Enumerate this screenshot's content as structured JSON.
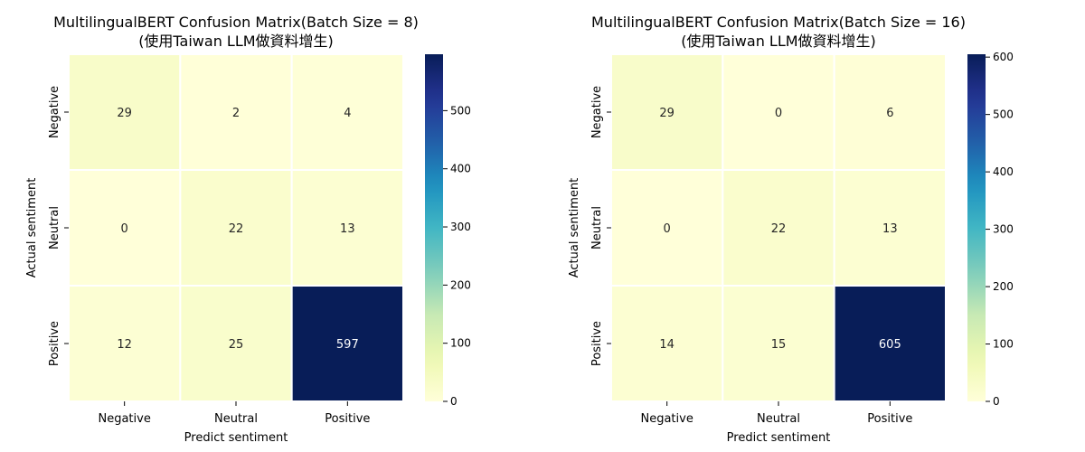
{
  "chart_data": [
    {
      "type": "heatmap",
      "title": "MultilingualBERT Confusion Matrix(Batch Size = 8)",
      "subtitle": "(使用Taiwan LLM做資料增生)",
      "xlabel": "Predict sentiment",
      "ylabel": "Actual sentiment",
      "x_categories": [
        "Negative",
        "Neutral",
        "Positive"
      ],
      "y_categories": [
        "Negative",
        "Neutral",
        "Positive"
      ],
      "values": [
        [
          29,
          2,
          4
        ],
        [
          0,
          22,
          13
        ],
        [
          12,
          25,
          597
        ]
      ],
      "colorbar": {
        "min": 0,
        "max": 597,
        "ticks": [
          0,
          100,
          200,
          300,
          400,
          500
        ],
        "colormap": "YlGnBu"
      }
    },
    {
      "type": "heatmap",
      "title": "MultilingualBERT Confusion Matrix(Batch Size = 16)",
      "subtitle": "(使用Taiwan LLM做資料增生)",
      "xlabel": "Predict sentiment",
      "ylabel": "Actual sentiment",
      "x_categories": [
        "Negative",
        "Neutral",
        "Positive"
      ],
      "y_categories": [
        "Negative",
        "Neutral",
        "Positive"
      ],
      "values": [
        [
          29,
          0,
          6
        ],
        [
          0,
          22,
          13
        ],
        [
          14,
          15,
          605
        ]
      ],
      "colorbar": {
        "min": 0,
        "max": 605,
        "ticks": [
          0,
          100,
          200,
          300,
          400,
          500,
          600
        ],
        "colormap": "YlGnBu"
      }
    }
  ]
}
